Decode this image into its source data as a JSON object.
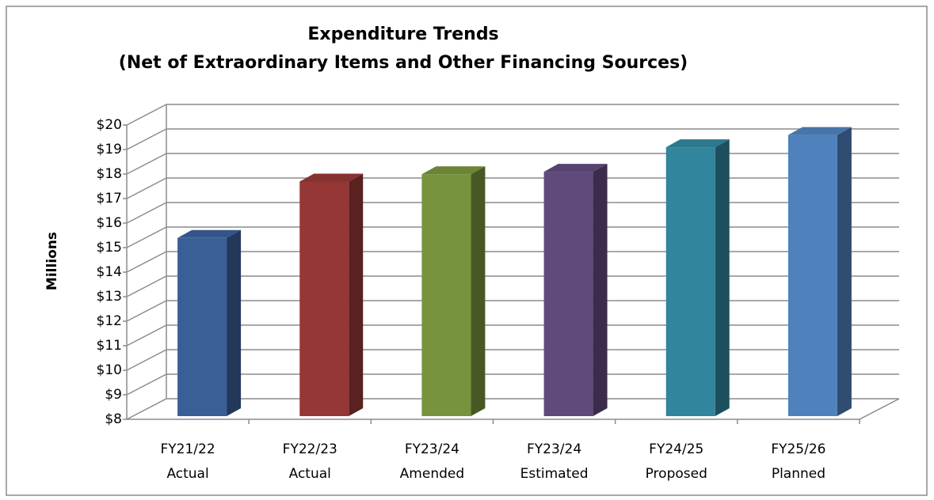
{
  "chart_data": {
    "type": "bar3d",
    "title": [
      "Expenditure Trends",
      "(Net of Extraordinary Items and Other Financing Sources)"
    ],
    "ylabel": "Millions",
    "categories": [
      [
        "FY21/22",
        "Actual"
      ],
      [
        "FY22/23",
        "Actual"
      ],
      [
        "FY23/24",
        "Amended"
      ],
      [
        "FY23/24",
        "Estimated"
      ],
      [
        "FY24/25",
        "Proposed"
      ],
      [
        "FY25/26",
        "Planned"
      ]
    ],
    "values": [
      15.2,
      17.5,
      17.8,
      17.9,
      18.9,
      19.4
    ],
    "colors": [
      "#3A5E98",
      "#953735",
      "#77933C",
      "#604A7B",
      "#31859C",
      "#4F81BD"
    ],
    "ylim": [
      8,
      20
    ],
    "yticks": [
      {
        "value": 8,
        "label": "$8"
      },
      {
        "value": 9,
        "label": "$9"
      },
      {
        "value": 10,
        "label": "$10"
      },
      {
        "value": 11,
        "label": "$11"
      },
      {
        "value": 12,
        "label": "$12"
      },
      {
        "value": 13,
        "label": "$13"
      },
      {
        "value": 14,
        "label": "$14"
      },
      {
        "value": 15,
        "label": "$15"
      },
      {
        "value": 16,
        "label": "$16"
      },
      {
        "value": 17,
        "label": "$17"
      },
      {
        "value": 18,
        "label": "$18"
      },
      {
        "value": 19,
        "label": "$19"
      },
      {
        "value": 20,
        "label": "$20"
      }
    ],
    "grid": true
  }
}
